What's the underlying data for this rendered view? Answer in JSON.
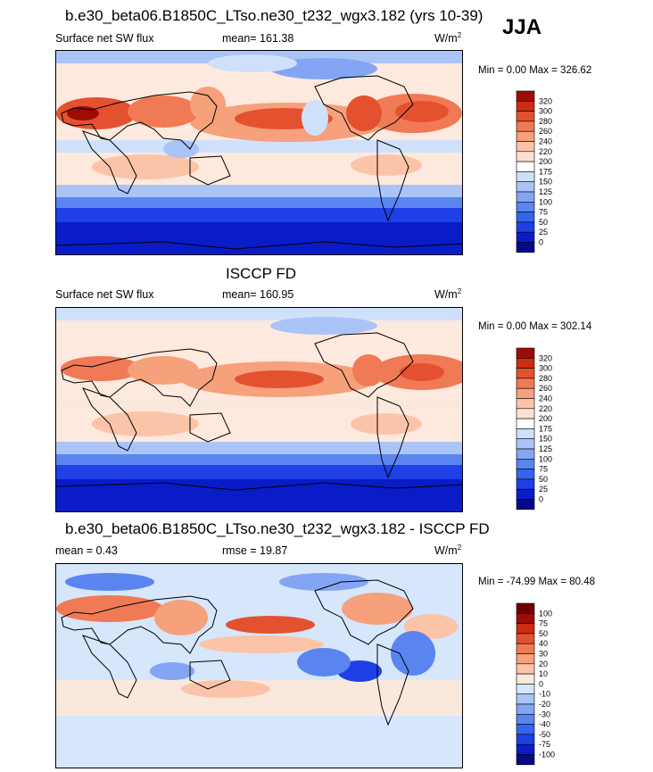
{
  "season": "JJA",
  "panels": [
    {
      "title": "b.e30_beta06.B1850C_LTso.ne30_t232_wgx3.182 (yrs 10-39)",
      "left_label": "Surface net SW flux",
      "center_label": "mean= 161.38",
      "units_base": "W/m",
      "units_sup": "2",
      "minmax": "Min =   0.00 Max = 326.62",
      "colorbar_labels": [
        "320",
        "300",
        "280",
        "260",
        "240",
        "220",
        "200",
        "175",
        "150",
        "125",
        "100",
        "75",
        "50",
        "25",
        "0"
      ],
      "palette": "abs"
    },
    {
      "title": "ISCCP FD",
      "left_label": "Surface net SW flux",
      "center_label": "mean= 160.95",
      "units_base": "W/m",
      "units_sup": "2",
      "minmax": "Min =   0.00 Max = 302.14",
      "colorbar_labels": [
        "320",
        "300",
        "280",
        "260",
        "240",
        "220",
        "200",
        "175",
        "150",
        "125",
        "100",
        "75",
        "50",
        "25",
        "0"
      ],
      "palette": "abs"
    },
    {
      "title": "b.e30_beta06.B1850C_LTso.ne30_t232_wgx3.182 - ISCCP FD",
      "left_label": "mean =   0.43",
      "center_label": "rmse =  19.87",
      "units_base": "W/m",
      "units_sup": "2",
      "minmax": "Min = -74.99 Max =  80.48",
      "colorbar_labels": [
        "100",
        "75",
        "50",
        "40",
        "30",
        "20",
        "10",
        "0",
        "-10",
        "-20",
        "-30",
        "-40",
        "-50",
        "-75",
        "-100"
      ],
      "palette": "diff"
    }
  ],
  "colors": {
    "abs": [
      "#08088a",
      "#0a1cc8",
      "#1f40e6",
      "#3366ee",
      "#5a85f0",
      "#84a5f4",
      "#aac4f7",
      "#cfe0fb",
      "#ffffff",
      "#fde1d0",
      "#fbc4a8",
      "#f6a07c",
      "#f07a55",
      "#e4512f",
      "#cc2d12",
      "#9e0d05"
    ],
    "diff": [
      "#08088a",
      "#0a1cc8",
      "#1f40e6",
      "#3366ee",
      "#5a85f0",
      "#84a5f4",
      "#aac4f7",
      "#d6e6fb",
      "#fbe8dc",
      "#fbc4a8",
      "#f6a07c",
      "#f07a55",
      "#e4512f",
      "#cc2d12",
      "#9e0d05",
      "#6e0000"
    ]
  }
}
